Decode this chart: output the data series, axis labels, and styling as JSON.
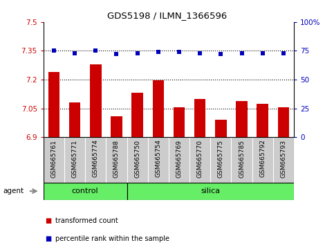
{
  "title": "GDS5198 / ILMN_1366596",
  "samples": [
    "GSM665761",
    "GSM665771",
    "GSM665774",
    "GSM665788",
    "GSM665750",
    "GSM665754",
    "GSM665769",
    "GSM665770",
    "GSM665775",
    "GSM665785",
    "GSM665792",
    "GSM665793"
  ],
  "bar_values": [
    7.24,
    7.08,
    7.28,
    7.01,
    7.13,
    7.195,
    7.055,
    7.1,
    6.99,
    7.09,
    7.075,
    7.055
  ],
  "dot_values": [
    75,
    73,
    75,
    72,
    73,
    74,
    74,
    73,
    72,
    73,
    73,
    73
  ],
  "groups": [
    {
      "label": "control",
      "count": 4
    },
    {
      "label": "silica",
      "count": 8
    }
  ],
  "ylim_left": [
    6.9,
    7.5
  ],
  "ylim_right": [
    0,
    100
  ],
  "yticks_left": [
    6.9,
    7.05,
    7.2,
    7.35,
    7.5
  ],
  "ytick_labels_left": [
    "6.9",
    "7.05",
    "7.2",
    "7.35",
    "7.5"
  ],
  "yticks_right": [
    0,
    25,
    50,
    75,
    100
  ],
  "ytick_labels_right": [
    "0",
    "25",
    "50",
    "75",
    "100%"
  ],
  "hlines": [
    7.05,
    7.2,
    7.35
  ],
  "bar_color": "#CC0000",
  "dot_color": "#0000BB",
  "bar_bottom": 6.9,
  "agent_label": "agent",
  "group_bg_color": "#66EE66",
  "tick_label_color_left": "#CC0000",
  "tick_label_color_right": "#0000BB",
  "xtick_bg_color": "#CCCCCC",
  "legend_items": [
    {
      "color": "#CC0000",
      "label": "transformed count"
    },
    {
      "color": "#0000BB",
      "label": "percentile rank within the sample"
    }
  ],
  "figsize": [
    4.83,
    3.54
  ],
  "dpi": 100
}
